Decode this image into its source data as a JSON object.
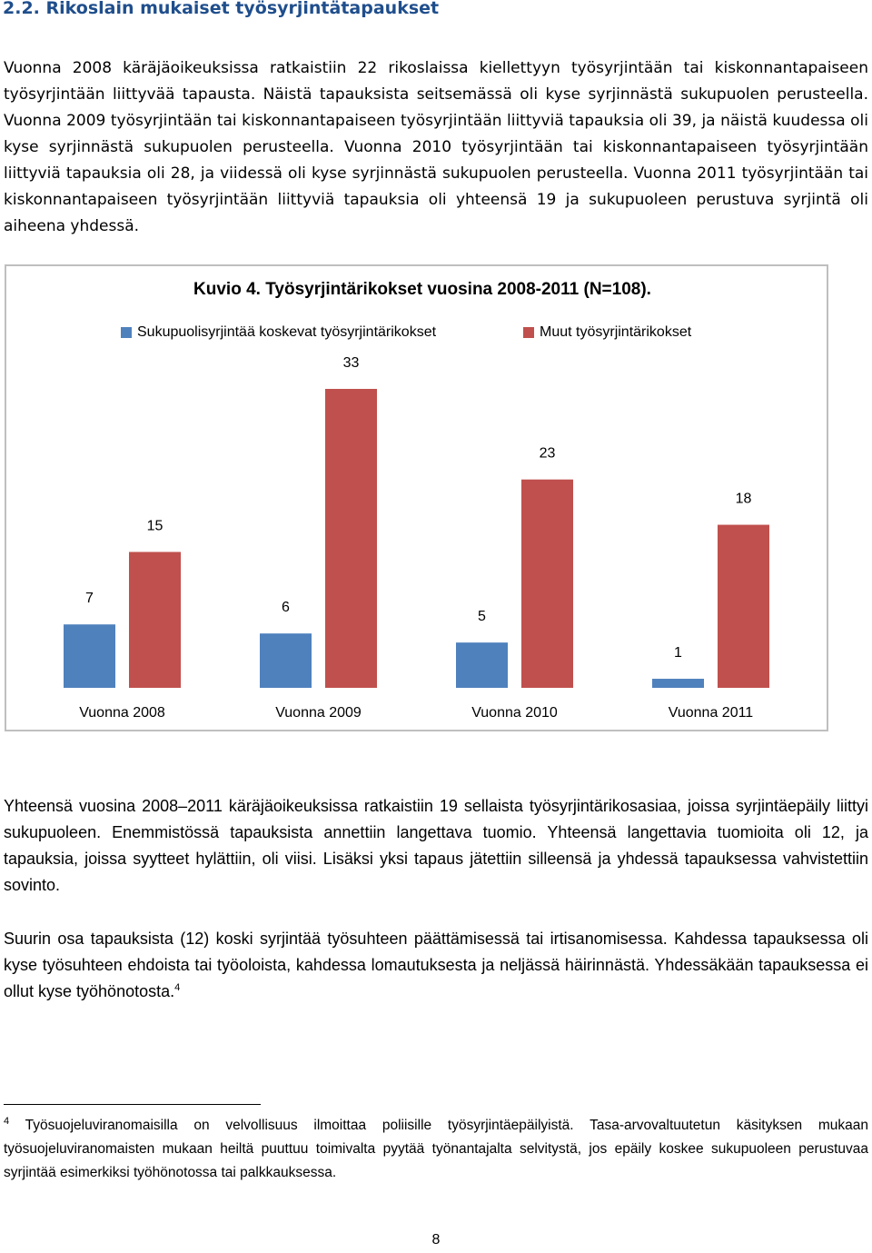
{
  "heading": "2.2. Rikoslain mukaiset työsyrjintätapaukset",
  "paragraph1": "Vuonna 2008 käräjäoikeuksissa ratkaistiin 22 rikoslaissa kiellettyyn työsyrjintään tai kiskonnantapaiseen työsyrjintään liittyvää tapausta. Näistä tapauksista seitsemässä oli kyse syrjinnästä sukupuolen perusteella. Vuonna 2009 työsyrjintään tai kiskonnantapaiseen työsyrjintään liittyviä tapauksia oli 39, ja näistä kuudessa oli kyse syrjinnästä sukupuolen perusteella. Vuonna 2010 työsyrjintään tai kiskonnantapaiseen työsyrjintään liittyviä tapauksia oli 28, ja viidessä oli kyse syrjinnästä sukupuolen perusteella. Vuonna 2011 työsyrjintään tai kiskonnantapaiseen työsyrjintään liittyviä tapauksia oli yhteensä 19 ja sukupuoleen perustuva syrjintä oli aiheena yhdessä.",
  "chart_data": {
    "type": "bar",
    "title": "Kuvio 4. Työsyrjintärikokset vuosina 2008-2011 (N=108).",
    "categories": [
      "Vuonna 2008",
      "Vuonna 2009",
      "Vuonna 2010",
      "Vuonna 2011"
    ],
    "series": [
      {
        "name": "Sukupuolisyrjintää koskevat työsyrjintärikokset",
        "values": [
          7,
          6,
          5,
          1
        ],
        "color": "#4f81bd"
      },
      {
        "name": "Muut työsyrjintärikokset",
        "values": [
          15,
          33,
          23,
          18
        ],
        "color": "#c0504d"
      }
    ],
    "ylim": [
      0,
      35
    ],
    "grid": false,
    "legend_position": "top",
    "data_labels": true
  },
  "paragraph2": "Yhteensä vuosina 2008–2011 käräjäoikeuksissa ratkaistiin 19 sellaista työsyrjintärikosasiaa, joissa syrjintäepäily liittyi sukupuoleen. Enemmistössä tapauksista annettiin langettava tuomio. Yhteensä langettavia tuomioita oli 12, ja tapauksia, joissa syytteet hylättiin, oli viisi. Lisäksi yksi tapaus jätettiin silleensä ja yhdessä tapauksessa vahvistettiin sovinto.",
  "paragraph3": "Suurin osa tapauksista (12) koski syrjintää työsuhteen päättämisessä tai irtisanomisessa. Kahdessa tapauksessa oli kyse työsuhteen ehdoista tai työoloista, kahdessa lomautuksesta ja neljässä häirinnästä. Yhdessäkään tapauksessa ei ollut kyse työhönotosta.",
  "footnote_ref": "4",
  "footnote_number": "4",
  "footnote_text": "Työsuojeluviranomaisilla on velvollisuus ilmoittaa poliisille työsyrjintäepäilyistä. Tasa-arvovaltuutetun käsityksen mukaan työsuojeluviranomaisten mukaan heiltä puuttuu toimivalta pyytää työnantajalta selvitystä, jos epäily koskee sukupuoleen perustuvaa syrjintää esimerkiksi työhönotossa tai palkkauksessa.",
  "page_number": "8"
}
